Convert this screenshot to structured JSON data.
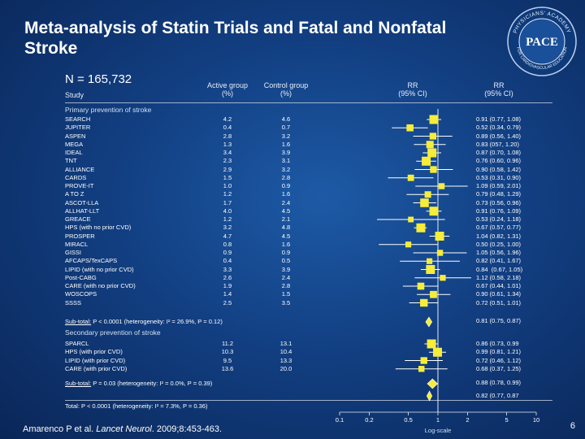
{
  "slide": {
    "title": "Meta-analysis of Statin Trials and Fatal and Nonfatal Stroke",
    "n_label": "N = 165,732",
    "citation_prefix": "Amarenco P et al. ",
    "citation_journal": "Lancet Neurol",
    "citation_suffix": ". 2009;8:453-463.",
    "page_number": "6",
    "logo_text_top": "PHYSICIANS' ACADEMY",
    "logo_text_main": "PACE",
    "logo_text_bottom": "FOR CARDIOVASCULAR EDUCATION"
  },
  "headers": {
    "study": "Study",
    "active": "Active group\n(%)",
    "control": "Control group\n(%)",
    "rr_plot": "RR\n(95% CI)",
    "rr_text": "RR\n(95% CI)"
  },
  "sections": {
    "primary": "Primary prevention of stroke",
    "secondary": "Secondary prevention of stroke",
    "primary_subtotal_label": "Sub-total:",
    "primary_subtotal_rest": " P < 0.0001 (heterogeneity: I² = 26.9%, P = 0.12)",
    "primary_subtotal_ci": "0.81 (0.75, 0.87)",
    "secondary_subtotal_label": "Sub-total:",
    "secondary_subtotal_rest": " P = 0.03 (heterogeneity: I² = 0.0%, P = 0.39)",
    "secondary_subtotal_ci": "0.88 (0.78, 0.99)",
    "total_text": "Total: P < 0.0001 (heterogeneity: I² = 7.3%, P = 0.36)",
    "total_ci": "0.82 (0.77, 0.87"
  },
  "chart_data": {
    "type": "forest",
    "x_scale": "log",
    "xlabel": "Log-scale",
    "x_ticks": [
      0.1,
      0.2,
      0.5,
      1,
      2,
      5,
      10
    ],
    "x_tick_labels": [
      "0.1",
      "0.2",
      "0.5",
      "1",
      "2",
      "5",
      "10"
    ],
    "primary": [
      {
        "study": "SEARCH",
        "active": "4.2",
        "control": "4.6",
        "rr": 0.91,
        "lo": 0.77,
        "hi": 1.08,
        "ci": "0.91 (0.77, 1.08)"
      },
      {
        "study": "JUPITER",
        "active": "0.4",
        "control": "0.7",
        "rr": 0.52,
        "lo": 0.34,
        "hi": 0.79,
        "ci": "0.52 (0.34, 0.79)"
      },
      {
        "study": "ASPEN",
        "active": "2.8",
        "control": "3.2",
        "rr": 0.89,
        "lo": 0.56,
        "hi": 1.4,
        "ci": "0.89 (0.56, 1.40)"
      },
      {
        "study": "MEGA",
        "active": "1.3",
        "control": "1.6",
        "rr": 0.83,
        "lo": 0.57,
        "hi": 1.2,
        "ci": "0.83 (057, 1.20)"
      },
      {
        "study": "IDEAL",
        "active": "3.4",
        "control": "3.9",
        "rr": 0.87,
        "lo": 0.7,
        "hi": 1.08,
        "ci": "0.87 (0.70, 1.08)"
      },
      {
        "study": "TNT",
        "active": "2.3",
        "control": "3.1",
        "rr": 0.76,
        "lo": 0.6,
        "hi": 0.96,
        "ci": "0.76 (0.60, 0.96)"
      },
      {
        "study": "ALLIANCE",
        "active": "2.9",
        "control": "3.2",
        "rr": 0.9,
        "lo": 0.58,
        "hi": 1.42,
        "ci": "0.90 (0.58, 1.42)"
      },
      {
        "study": "CARDS",
        "active": "1.5",
        "control": "2.8",
        "rr": 0.53,
        "lo": 0.31,
        "hi": 0.9,
        "ci": "0.53 (0.31, 0.90)"
      },
      {
        "study": "PROVE-IT",
        "active": "1.0",
        "control": "0.9",
        "rr": 1.09,
        "lo": 0.59,
        "hi": 2.01,
        "ci": "1.09 (0.59, 2.01)"
      },
      {
        "study": "A TO Z",
        "active": "1.2",
        "control": "1.6",
        "rr": 0.79,
        "lo": 0.48,
        "hi": 1.29,
        "ci": "0.79 (0.48, 1.29)"
      },
      {
        "study": "ASCOT-LLA",
        "active": "1.7",
        "control": "2.4",
        "rr": 0.73,
        "lo": 0.56,
        "hi": 0.96,
        "ci": "0.73 (0.56, 0.96)"
      },
      {
        "study": "ALLHAT-LLT",
        "active": "4.0",
        "control": "4.5",
        "rr": 0.91,
        "lo": 0.76,
        "hi": 1.09,
        "ci": "0.91 (0.76, 1.09)"
      },
      {
        "study": "GREACE",
        "active": "1.2",
        "control": "2.1",
        "rr": 0.53,
        "lo": 0.24,
        "hi": 1.18,
        "ci": "0.53 (0.24, 1.18)"
      },
      {
        "study": "HPS (with no prior CVD)",
        "active": "3.2",
        "control": "4.8",
        "rr": 0.67,
        "lo": 0.57,
        "hi": 0.77,
        "ci": "0.67 (0.57, 0.77)"
      },
      {
        "study": "PROSPER",
        "active": "4.7",
        "control": "4.5",
        "rr": 1.04,
        "lo": 0.82,
        "hi": 1.31,
        "ci": "1.04 (0.82, 1.31)"
      },
      {
        "study": "MIRACL",
        "active": "0.8",
        "control": "1.6",
        "rr": 0.5,
        "lo": 0.25,
        "hi": 1.0,
        "ci": "0.50 (0.25, 1.00)"
      },
      {
        "study": "GISSI",
        "active": "0.9",
        "control": "0.9",
        "rr": 1.05,
        "lo": 0.56,
        "hi": 1.96,
        "ci": "1.05 (0.56, 1.96)"
      },
      {
        "study": "AFCAPS/TexCAPS",
        "active": "0.4",
        "control": "0.5",
        "rr": 0.82,
        "lo": 0.41,
        "hi": 1.67,
        "ci": "0.82 (0.41, 1.67)"
      },
      {
        "study": "LIPID (with no prior CVD)",
        "active": "3.3",
        "control": "3.9",
        "rr": 0.84,
        "lo": 0.67,
        "hi": 1.05,
        "ci": "0.84  (0.67, 1.05)"
      },
      {
        "study": "Post-CABG",
        "active": "2.6",
        "control": "2.4",
        "rr": 1.12,
        "lo": 0.58,
        "hi": 2.18,
        "ci": "1.12 (0.58, 2.18)"
      },
      {
        "study": "CARE (with no prior CVD)",
        "active": "1.9",
        "control": "2.8",
        "rr": 0.67,
        "lo": 0.44,
        "hi": 1.01,
        "ci": "0.67 (0.44, 1.01)"
      },
      {
        "study": "WOSCOPS",
        "active": "1.4",
        "control": "1.5",
        "rr": 0.9,
        "lo": 0.61,
        "hi": 1.34,
        "ci": "0.90 (0.61, 1.34)"
      },
      {
        "study": "SSSS",
        "active": "2.5",
        "control": "3.5",
        "rr": 0.72,
        "lo": 0.51,
        "hi": 1.01,
        "ci": "0.72 (0.51, 1.01)"
      }
    ],
    "secondary": [
      {
        "study": "SPARCL",
        "active": "11.2",
        "control": "13.1",
        "rr": 0.86,
        "lo": 0.73,
        "hi": 0.99,
        "ci": "0.86 (0.73, 0.99"
      },
      {
        "study": "HPS (with prior CVD)",
        "active": "10.3",
        "control": "10.4",
        "rr": 0.99,
        "lo": 0.81,
        "hi": 1.21,
        "ci": "0.99 (0.81, 1.21)"
      },
      {
        "study": "LIPID (with prior CVD)",
        "active": "9.5",
        "control": "13.3",
        "rr": 0.72,
        "lo": 0.46,
        "hi": 1.12,
        "ci": "0.72 (0.46, 1.12)"
      },
      {
        "study": "CARE (with prior CVD)",
        "active": "13.6",
        "control": "20.0",
        "rr": 0.68,
        "lo": 0.37,
        "hi": 1.25,
        "ci": "0.68 (0.37, 1.25)"
      }
    ],
    "primary_subtotal": {
      "rr": 0.81,
      "lo": 0.75,
      "hi": 0.87
    },
    "secondary_subtotal": {
      "rr": 0.88,
      "lo": 0.78,
      "hi": 0.99
    },
    "total": {
      "rr": 0.82,
      "lo": 0.77,
      "hi": 0.87
    }
  }
}
